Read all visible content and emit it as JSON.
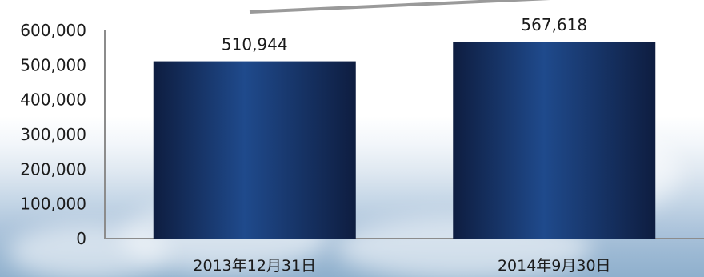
{
  "chart_data": {
    "type": "bar",
    "categories": [
      "2013年12月31日",
      "2014年9月30日"
    ],
    "values": [
      510944,
      567618
    ],
    "value_labels": [
      "510,944",
      "567,618"
    ],
    "y_ticks": [
      "0",
      "100,000",
      "200,000",
      "300,000",
      "400,000",
      "500,000",
      "600,000"
    ],
    "ylim": [
      0,
      600000
    ],
    "grid": false,
    "bar_color_dark": "#0e1d40",
    "bar_color_light": "#1f4a8c",
    "axis_color": "#8c8c8c",
    "trend_arrow_color": "#9a9a9a"
  }
}
